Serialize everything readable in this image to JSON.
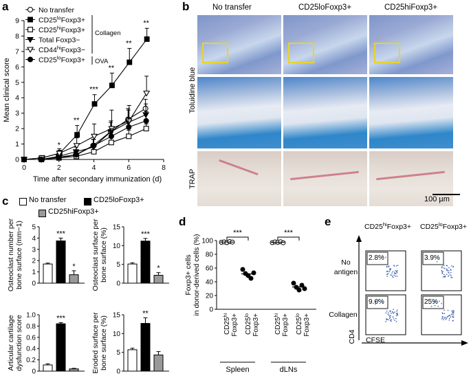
{
  "panel_labels": {
    "a": "a",
    "b": "b",
    "c": "c",
    "d": "d",
    "e": "e"
  },
  "chart_data": [
    {
      "id": "a",
      "type": "line",
      "xlabel": "Time after secondary immunization (d)",
      "ylabel": "Mean clinical score",
      "x": [
        0,
        1,
        2,
        3,
        4,
        5,
        6,
        7
      ],
      "xlim": [
        0,
        8
      ],
      "ylim": [
        0,
        9
      ],
      "xticks": [
        0,
        2,
        4,
        6,
        8
      ],
      "yticks": [
        0,
        1,
        2,
        3,
        4,
        5,
        6,
        7,
        8,
        9
      ],
      "series": [
        {
          "name": "No transfer",
          "marker": "circle-open",
          "values": [
            0,
            0,
            0.15,
            0.3,
            0.9,
            1.8,
            2.6,
            3.3
          ],
          "err": [
            0,
            0,
            0.1,
            0.2,
            0.4,
            0.6,
            0.7,
            0.6
          ]
        },
        {
          "name": "CD25loFoxp3+",
          "marker": "square-filled",
          "values": [
            0,
            0.1,
            0.4,
            1.6,
            3.6,
            4.8,
            6.3,
            7.8
          ],
          "err": [
            0,
            0.05,
            0.2,
            0.6,
            0.6,
            0.8,
            0.9,
            0.7
          ]
        },
        {
          "name": "CD25hiFoxp3+",
          "marker": "square-open",
          "values": [
            0,
            0,
            0.1,
            0.2,
            0.5,
            1.1,
            1.5,
            2.0
          ],
          "err": [
            0,
            0,
            0.05,
            0.15,
            0.3,
            0.4,
            0.4,
            0.3
          ]
        },
        {
          "name": "Total Foxp3−",
          "marker": "triangle-down-filled",
          "values": [
            0,
            0,
            0.2,
            0.5,
            0.8,
            1.8,
            2.4,
            2.9
          ],
          "err": [
            0,
            0,
            0.15,
            0.3,
            0.5,
            0.7,
            0.8,
            0.7
          ]
        },
        {
          "name": "CD44hiFoxp3−",
          "marker": "triangle-down-open",
          "values": [
            0,
            0.1,
            0.4,
            0.9,
            1.5,
            2.0,
            2.5,
            4.3
          ],
          "err": [
            0,
            0.1,
            0.3,
            0.5,
            0.8,
            1.2,
            1.0,
            1.1
          ]
        },
        {
          "name": "CD25loFoxp3+ | OVA",
          "marker": "circle-filled",
          "values": [
            0,
            0,
            0.1,
            0.3,
            0.9,
            1.5,
            2.1,
            2.5
          ],
          "err": [
            0,
            0,
            0.1,
            0.2,
            0.4,
            0.5,
            0.6,
            0.6
          ]
        }
      ],
      "significance": [
        {
          "x": 2,
          "label": "*"
        },
        {
          "x": 3,
          "label": "**"
        },
        {
          "x": 4,
          "label": "***"
        },
        {
          "x": 5,
          "label": "**"
        },
        {
          "x": 6,
          "label": "**"
        },
        {
          "x": 7,
          "label": "**"
        }
      ],
      "legend_bracket_labels": {
        "collagen": "Collagen",
        "ova": "OVA"
      }
    },
    {
      "id": "c1",
      "type": "bar",
      "categories": [
        "No transfer",
        "CD25loFoxp3+",
        "CD25hiFoxp3+"
      ],
      "values": [
        1.7,
        3.75,
        0.75
      ],
      "err": [
        0.08,
        0.25,
        0.35
      ],
      "colors": [
        "#ffffff",
        "#000000",
        "#999999"
      ],
      "ylabel": "Osteoclast number per bone surface (mm−1)",
      "ylim": [
        0,
        5
      ],
      "yticks": [
        0,
        1,
        2,
        3,
        4,
        5
      ],
      "significance": [
        "",
        "***",
        "*"
      ]
    },
    {
      "id": "c2",
      "type": "bar",
      "categories": [
        "No transfer",
        "CD25loFoxp3+",
        "CD25hiFoxp3+"
      ],
      "values": [
        5.1,
        11.2,
        2.1
      ],
      "err": [
        0.3,
        0.7,
        0.7
      ],
      "colors": [
        "#ffffff",
        "#000000",
        "#999999"
      ],
      "ylabel": "Osteoclast surface per bone surface (%)",
      "ylim": [
        0,
        15
      ],
      "yticks": [
        0,
        5,
        10,
        15
      ],
      "significance": [
        "",
        "***",
        "*"
      ]
    },
    {
      "id": "c3",
      "type": "bar",
      "categories": [
        "No transfer",
        "CD25loFoxp3+",
        "CD25hiFoxp3+"
      ],
      "values": [
        0.11,
        0.84,
        0.04
      ],
      "err": [
        0.02,
        0.02,
        0.01
      ],
      "colors": [
        "#ffffff",
        "#000000",
        "#999999"
      ],
      "ylabel": "Articular cartilage dysfunction score",
      "ylim": [
        0,
        1.0
      ],
      "yticks": [
        0,
        0.2,
        0.4,
        0.6,
        0.8,
        1.0
      ],
      "significance": [
        "",
        "***",
        ""
      ]
    },
    {
      "id": "c4",
      "type": "bar",
      "categories": [
        "No transfer",
        "CD25loFoxp3+",
        "CD25hiFoxp3+"
      ],
      "values": [
        5.7,
        12.7,
        4.3
      ],
      "err": [
        0.4,
        1.5,
        0.9
      ],
      "colors": [
        "#ffffff",
        "#000000",
        "#999999"
      ],
      "ylabel": "Eroded surface per bone surface (%)",
      "ylim": [
        0,
        15
      ],
      "yticks": [
        0,
        5,
        10,
        15
      ],
      "significance": [
        "",
        "**",
        ""
      ]
    },
    {
      "id": "d",
      "type": "scatter",
      "ylabel": "Foxp3+ cells in donor-derived cells (%)",
      "ylim": [
        0,
        100
      ],
      "yticks": [
        0,
        20,
        40,
        60,
        80,
        100
      ],
      "groups": [
        {
          "label": "CD25hi Foxp3+",
          "tissue": "Spleen",
          "values": [
            97.5,
            98,
            97,
            98.5,
            97.8
          ],
          "mean": 97.8,
          "open": true
        },
        {
          "label": "CD25lo Foxp3+",
          "tissue": "Spleen",
          "values": [
            58,
            52,
            49,
            45,
            53
          ],
          "mean": 51.5,
          "open": false
        },
        {
          "label": "CD25hi Foxp3+",
          "tissue": "dLNs",
          "values": [
            97,
            98,
            97.5,
            98.2,
            96.8
          ],
          "mean": 97.5,
          "open": true
        },
        {
          "label": "CD25lo Foxp3+",
          "tissue": "dLNs",
          "values": [
            38,
            32,
            28,
            35,
            30
          ],
          "mean": 32.5,
          "open": false
        }
      ],
      "significance": [
        "***",
        "***"
      ],
      "group_labels": [
        "Spleen",
        "dLNs"
      ]
    }
  ],
  "panel_b": {
    "columns": [
      "No transfer",
      "CD25loFoxp3+",
      "CD25hiFoxp3+"
    ],
    "row_labels": [
      "Toluidine blue",
      "TRAP"
    ],
    "scale_bar": "100 µm"
  },
  "panel_e": {
    "columns": [
      "CD25hiFoxp3+",
      "CD25loFoxp3+"
    ],
    "rows": [
      "No antigen",
      "Collagen"
    ],
    "gate_percent": [
      [
        "2.8%",
        "3.9%"
      ],
      [
        "9.6%",
        "25%"
      ]
    ],
    "y_axis": "CD4",
    "x_axis": "CFSE"
  },
  "legend_c": {
    "no_transfer": "No transfer",
    "lo": "CD25loFoxp3+",
    "hi": "CD25hiFoxp3+"
  }
}
